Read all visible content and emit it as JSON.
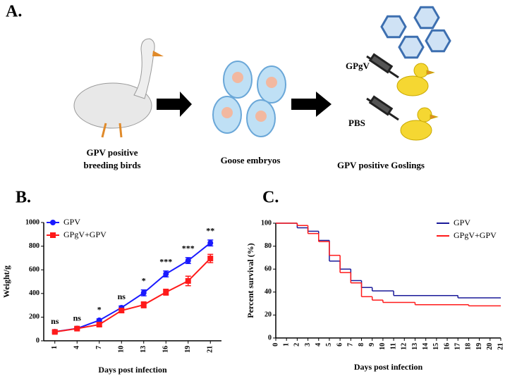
{
  "figure": {
    "panel_labels": [
      "A.",
      "B.",
      "C."
    ],
    "diagram": {
      "source": [
        "GPV positive",
        "breeding birds"
      ],
      "embryos": "Goose embryos",
      "goslings": "GPV positive Goslings",
      "treatment_1": "GPgV",
      "treatment_2": "PBS"
    }
  },
  "chart_data": [
    {
      "type": "line",
      "x_label": "Days post infection",
      "y_label": "Weight/g",
      "categories": [
        "1",
        "4",
        "7",
        "10",
        "13",
        "16",
        "19",
        "21"
      ],
      "annotations": [
        "ns",
        "ns",
        "*",
        "ns",
        "*",
        "***",
        "***",
        "**"
      ],
      "series": [
        {
          "name": "GPV",
          "color": "#1a1aff",
          "marker": "circle",
          "values": [
            77,
            104,
            173,
            280,
            405,
            565,
            678,
            827
          ],
          "errors": [
            10,
            10,
            12,
            15,
            25,
            25,
            25,
            25
          ]
        },
        {
          "name": "GPgV+GPV",
          "color": "#ff1a1a",
          "marker": "square",
          "values": [
            75,
            103,
            137,
            256,
            304,
            411,
            506,
            696
          ],
          "errors": [
            10,
            10,
            15,
            15,
            25,
            25,
            40,
            35
          ]
        }
      ],
      "ylim": [
        0,
        1000
      ],
      "yticks": [
        0,
        200,
        400,
        600,
        800,
        1000
      ],
      "legend": "upper left"
    },
    {
      "type": "step",
      "x_label": "Days post infection",
      "y_label": "Percent survival (%)",
      "series": [
        {
          "name": "GPV",
          "color": "#1a1a99",
          "x": [
            0,
            2,
            3,
            4,
            5,
            6,
            7,
            8,
            9,
            11,
            17,
            21
          ],
          "values": [
            100,
            96,
            93,
            85,
            67,
            60,
            50,
            44,
            41,
            37,
            35,
            35
          ]
        },
        {
          "name": "GPgV+GPV",
          "color": "#ff1a1a",
          "x": [
            0,
            2,
            3,
            4,
            5,
            6,
            7,
            8,
            9,
            10,
            13,
            18,
            21
          ],
          "values": [
            100,
            98,
            91,
            84,
            72,
            57,
            48,
            36,
            33,
            31,
            29,
            28,
            28
          ]
        }
      ],
      "xlim": [
        0,
        21
      ],
      "xticks": [
        0,
        1,
        2,
        3,
        4,
        5,
        6,
        7,
        8,
        9,
        10,
        11,
        12,
        13,
        14,
        15,
        16,
        17,
        18,
        19,
        20,
        21
      ],
      "ylim": [
        0,
        100
      ],
      "yticks": [
        0,
        20,
        40,
        60,
        80,
        100
      ],
      "legend": "upper right"
    }
  ]
}
